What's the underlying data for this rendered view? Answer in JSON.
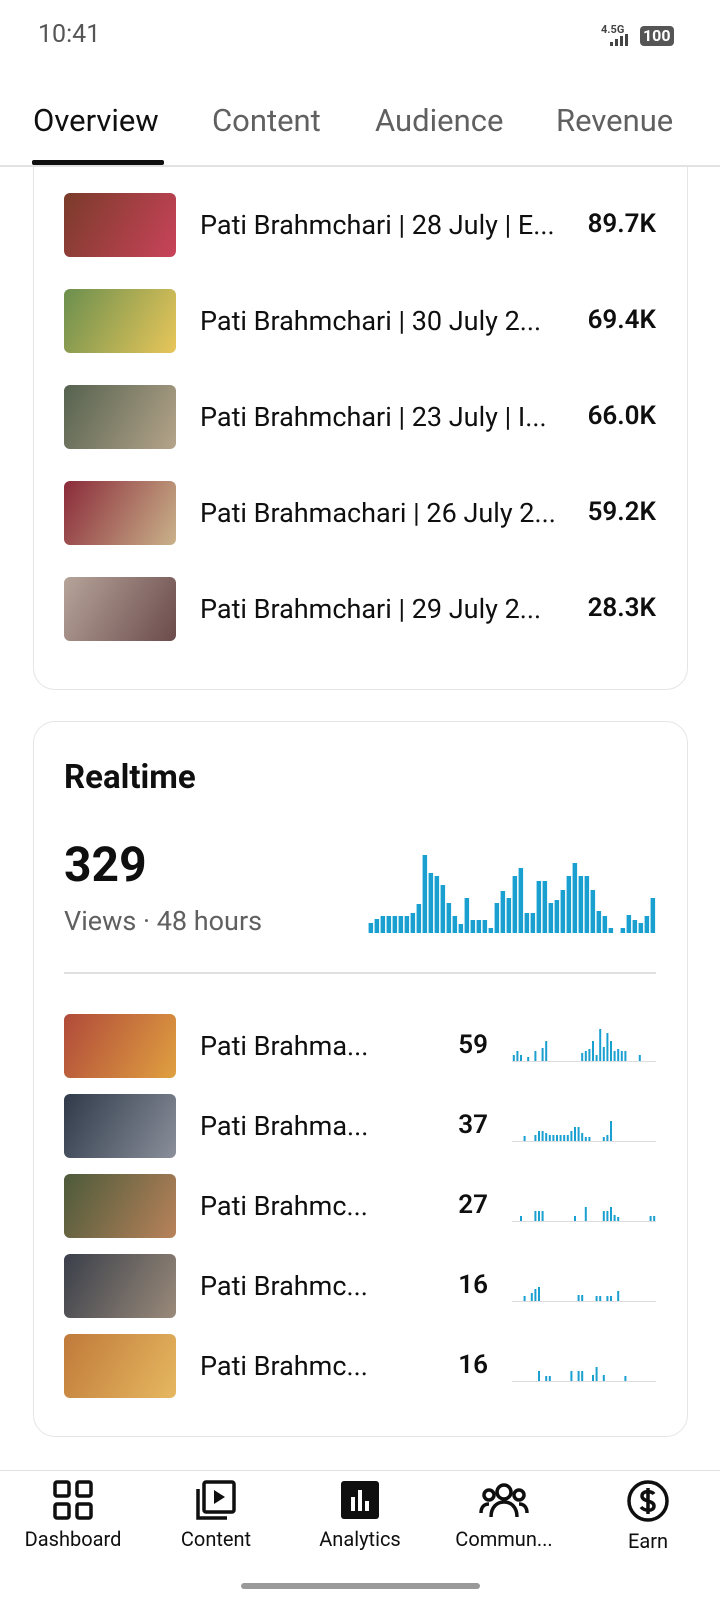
{
  "status": {
    "time": "10:41",
    "network": "4.5G",
    "battery": "100"
  },
  "tabs": [
    "Overview",
    "Content",
    "Audience",
    "Revenue"
  ],
  "top_content": [
    {
      "title": "Pati Brahmchari | 28 July | E...",
      "value": "89.7K"
    },
    {
      "title": "Pati Brahmchari | 30 July 2...",
      "value": "69.4K"
    },
    {
      "title": "Pati Brahmchari | 23 July | I...",
      "value": "66.0K"
    },
    {
      "title": "Pati Brahmachari | 26 July 2...",
      "value": "59.2K"
    },
    {
      "title": "Pati Brahmchari | 29 July 2...",
      "value": "28.3K"
    }
  ],
  "realtime": {
    "title": "Realtime",
    "views": "329",
    "subtitle": "Views · 48 hours",
    "chart": {
      "type": "bar",
      "color": "#1a9fd1",
      "values": [
        10,
        14,
        17,
        17,
        17,
        17,
        17,
        20,
        29,
        78,
        60,
        57,
        48,
        30,
        17,
        9,
        35,
        13,
        13,
        13,
        5,
        30,
        42,
        35,
        57,
        65,
        20,
        20,
        52,
        52,
        30,
        33,
        43,
        57,
        70,
        57,
        57,
        43,
        22,
        17,
        5,
        0,
        5,
        18,
        13,
        10,
        17,
        35
      ]
    },
    "videos": [
      {
        "title": "Pati Brahma...",
        "views": "59",
        "spark": [
          6,
          10,
          6,
          0,
          4,
          0,
          10,
          0,
          13,
          20,
          0,
          0,
          0,
          0,
          0,
          0,
          0,
          0,
          0,
          8,
          10,
          12,
          20,
          6,
          32,
          14,
          28,
          20,
          10,
          12,
          10,
          10,
          0,
          0,
          0,
          6,
          0,
          0,
          0,
          0
        ]
      },
      {
        "title": "Pati Brahma...",
        "views": "37",
        "spark": [
          0,
          0,
          0,
          5,
          0,
          0,
          6,
          10,
          10,
          8,
          6,
          6,
          6,
          6,
          6,
          6,
          10,
          14,
          14,
          8,
          4,
          4,
          0,
          0,
          0,
          4,
          6,
          20,
          0,
          0,
          0,
          0,
          0,
          0,
          0,
          0,
          0,
          0,
          0,
          0
        ]
      },
      {
        "title": "Pati Brahmc...",
        "views": "27",
        "spark": [
          0,
          0,
          5,
          0,
          0,
          0,
          10,
          10,
          10,
          0,
          0,
          0,
          0,
          0,
          0,
          0,
          0,
          5,
          0,
          0,
          14,
          0,
          0,
          0,
          0,
          10,
          10,
          14,
          6,
          4,
          0,
          0,
          0,
          0,
          0,
          0,
          0,
          0,
          5,
          5
        ]
      },
      {
        "title": "Pati Brahmc...",
        "views": "16",
        "spark": [
          0,
          0,
          0,
          5,
          0,
          8,
          12,
          14,
          0,
          0,
          0,
          0,
          0,
          0,
          0,
          0,
          0,
          0,
          6,
          6,
          0,
          0,
          0,
          5,
          5,
          0,
          5,
          5,
          0,
          10,
          0,
          0,
          0,
          0,
          0,
          0,
          0,
          0,
          0,
          0
        ]
      },
      {
        "title": "Pati Brahmc...",
        "views": "16",
        "spark": [
          0,
          0,
          0,
          0,
          0,
          0,
          0,
          10,
          0,
          5,
          5,
          0,
          0,
          0,
          0,
          0,
          10,
          0,
          10,
          10,
          0,
          0,
          6,
          14,
          0,
          6,
          0,
          0,
          0,
          0,
          0,
          5,
          0,
          0,
          0,
          0,
          0,
          0,
          0,
          0
        ]
      }
    ]
  },
  "nav": [
    "Dashboard",
    "Content",
    "Analytics",
    "Commun...",
    "Earn"
  ]
}
